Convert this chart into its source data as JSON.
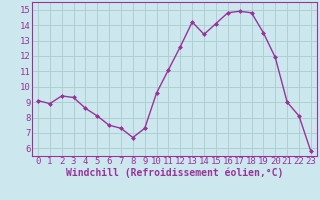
{
  "x": [
    0,
    1,
    2,
    3,
    4,
    5,
    6,
    7,
    8,
    9,
    10,
    11,
    12,
    13,
    14,
    15,
    16,
    17,
    18,
    19,
    20,
    21,
    22,
    23
  ],
  "y": [
    9.1,
    8.9,
    9.4,
    9.3,
    8.6,
    8.1,
    7.5,
    7.3,
    6.7,
    7.3,
    9.6,
    11.1,
    12.6,
    14.2,
    13.4,
    14.1,
    14.8,
    14.9,
    14.8,
    13.5,
    11.9,
    9.0,
    8.1,
    5.8
  ],
  "line_color": "#993399",
  "marker": "D",
  "marker_size": 2.0,
  "bg_color": "#cce8ee",
  "grid_color": "#aacccc",
  "ylabel_ticks": [
    6,
    7,
    8,
    9,
    10,
    11,
    12,
    13,
    14,
    15
  ],
  "xlabel": "Windchill (Refroidissement éolien,°C)",
  "ylim": [
    5.5,
    15.5
  ],
  "xlim": [
    -0.5,
    23.5
  ],
  "tick_label_color": "#993399",
  "axis_label_color": "#993399",
  "xlabel_fontsize": 7,
  "tick_fontsize": 6.5,
  "linewidth": 1.0
}
